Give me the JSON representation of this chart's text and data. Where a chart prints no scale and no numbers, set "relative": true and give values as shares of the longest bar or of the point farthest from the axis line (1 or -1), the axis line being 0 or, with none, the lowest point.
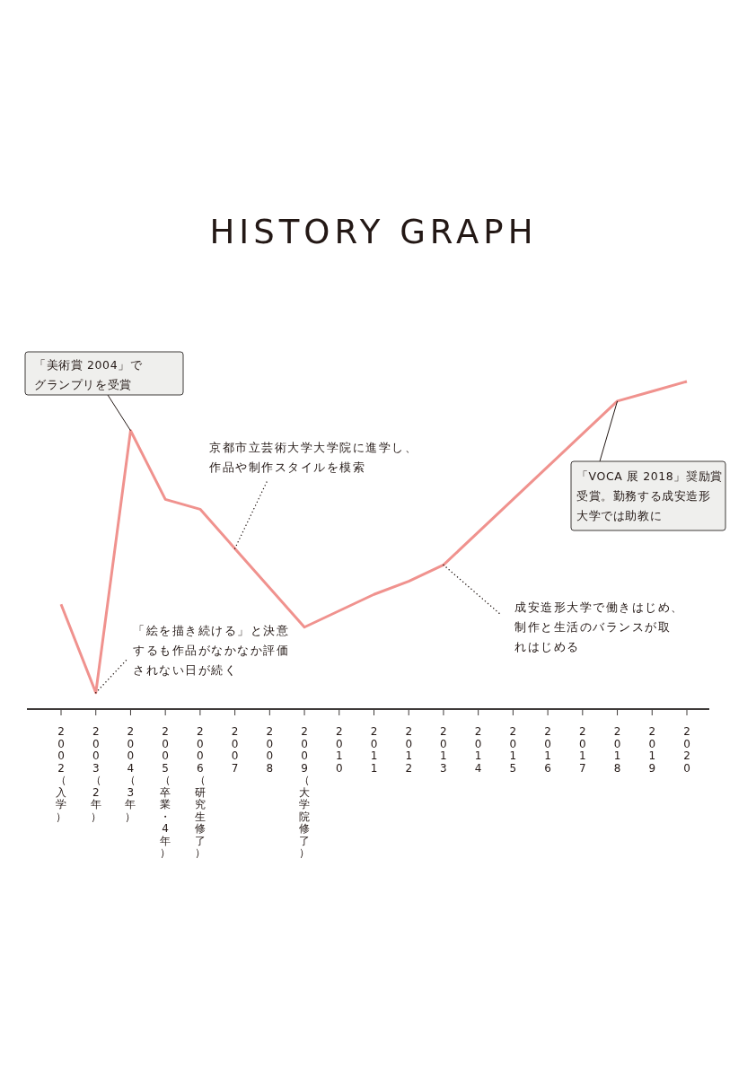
{
  "chart_data": {
    "type": "line",
    "title": "HISTORY GRAPH",
    "relative": true,
    "categories": [
      "2002（入学）",
      "2003（2年）",
      "2004（3年）",
      "2005（卒業・4年）",
      "2006（研究生修了）",
      "2007",
      "2008",
      "2009（大学院修了）",
      "2010",
      "2011",
      "2012",
      "2013",
      "2014",
      "2015",
      "2016",
      "2017",
      "2018",
      "2019",
      "2020"
    ],
    "series": [
      {
        "color": "#f0928e",
        "values": [
          0.32,
          0.05,
          0.85,
          0.64,
          0.61,
          0.49,
          0.37,
          0.25,
          0.3,
          0.35,
          0.39,
          0.44,
          0.54,
          0.64,
          0.74,
          0.84,
          0.94,
          0.97,
          1
        ]
      }
    ],
    "marker": "none",
    "line_style": "solid",
    "grid": false,
    "annotations": [
      {
        "text": "「美術賞 2004」でグランプリを受賞",
        "x": "2004（3年）",
        "y": 0.85
      },
      {
        "text": "京都市立芸術大学大学院に進学し、作品や制作スタイルを模索",
        "x": "2007",
        "y": 0.49
      },
      {
        "text": "「絵を描き続ける」と決意するも作品がなかなか評価されない日が続く",
        "x": "2003（2年）",
        "y": 0.05
      },
      {
        "text": "成安造形大学で働きはじめ、制作と生活のバランスが取れはじめる",
        "x": "2013",
        "y": 0.44
      },
      {
        "text": "「VOCA 展 2018」奨励賞受賞。勤務する成安造形大学では助教に",
        "x": "2018",
        "y": 0.94
      }
    ]
  }
}
